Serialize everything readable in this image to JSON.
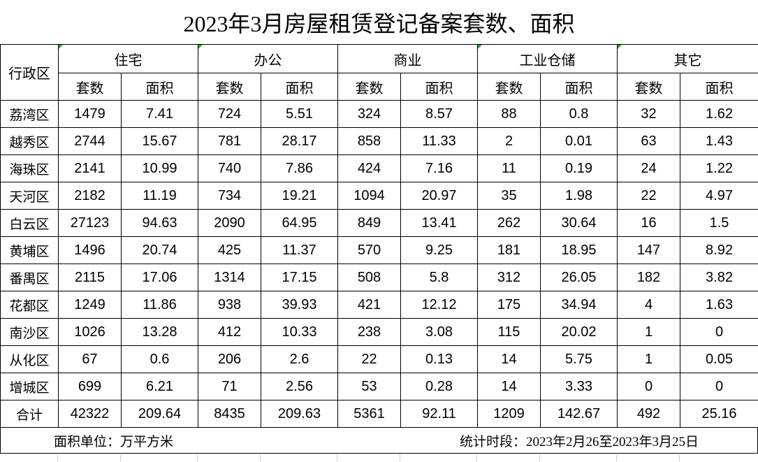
{
  "title": "2023年3月房屋租赁登记备案套数、面积",
  "chart_data": {
    "type": "table",
    "title": "2023年3月房屋租赁登记备案套数、面积",
    "corner_header": "行政区",
    "groups": [
      {
        "label": "住宅",
        "error_flag": true
      },
      {
        "label": "办公",
        "error_flag": true
      },
      {
        "label": "商业",
        "error_flag": false
      },
      {
        "label": "工业仓储",
        "error_flag": true
      },
      {
        "label": "其它",
        "error_flag": true
      }
    ],
    "sub_headers": [
      "套数",
      "面积"
    ],
    "columns": [
      "行政区",
      "住宅套数",
      "住宅面积",
      "办公套数",
      "办公面积",
      "商业套数",
      "商业面积",
      "工业仓储套数",
      "工业仓储面积",
      "其它套数",
      "其它面积"
    ],
    "rows": [
      {
        "district": "荔湾区",
        "values": [
          "1479",
          "7.41",
          "724",
          "5.51",
          "324",
          "8.57",
          "88",
          "0.8",
          "32",
          "1.62"
        ]
      },
      {
        "district": "越秀区",
        "values": [
          "2744",
          "15.67",
          "781",
          "28.17",
          "858",
          "11.33",
          "2",
          "0.01",
          "63",
          "1.43"
        ]
      },
      {
        "district": "海珠区",
        "values": [
          "2141",
          "10.99",
          "740",
          "7.86",
          "424",
          "7.16",
          "11",
          "0.19",
          "24",
          "1.22"
        ]
      },
      {
        "district": "天河区",
        "values": [
          "2182",
          "11.19",
          "734",
          "19.21",
          "1094",
          "20.97",
          "35",
          "1.98",
          "22",
          "4.97"
        ]
      },
      {
        "district": "白云区",
        "values": [
          "27123",
          "94.63",
          "2090",
          "64.95",
          "849",
          "13.41",
          "262",
          "30.64",
          "16",
          "1.5"
        ]
      },
      {
        "district": "黄埔区",
        "values": [
          "1496",
          "20.74",
          "425",
          "11.37",
          "570",
          "9.25",
          "181",
          "18.95",
          "147",
          "8.92"
        ]
      },
      {
        "district": "番禺区",
        "values": [
          "2115",
          "17.06",
          "1314",
          "17.15",
          "508",
          "5.8",
          "312",
          "26.05",
          "182",
          "3.82"
        ]
      },
      {
        "district": "花都区",
        "values": [
          "1249",
          "11.86",
          "938",
          "39.93",
          "421",
          "12.12",
          "175",
          "34.94",
          "4",
          "1.63"
        ]
      },
      {
        "district": "南沙区",
        "values": [
          "1026",
          "13.28",
          "412",
          "10.33",
          "238",
          "3.08",
          "115",
          "20.02",
          "1",
          "0"
        ]
      },
      {
        "district": "从化区",
        "values": [
          "67",
          "0.6",
          "206",
          "2.6",
          "22",
          "0.13",
          "14",
          "5.75",
          "1",
          "0.05"
        ]
      },
      {
        "district": "增城区",
        "values": [
          "699",
          "6.21",
          "71",
          "2.56",
          "53",
          "0.28",
          "14",
          "3.33",
          "0",
          "0"
        ]
      },
      {
        "district": "合计",
        "values": [
          "42322",
          "209.64",
          "8435",
          "209.63",
          "5361",
          "92.11",
          "1209",
          "142.67",
          "492",
          "25.16"
        ]
      }
    ]
  },
  "footer": {
    "area_unit_label": "面积单位：万平方米",
    "period_label": "统计时段：2023年2月26至2023年3月25日"
  },
  "colors": {
    "text": "#000000",
    "border": "#000000",
    "flag_green": "#2aa12a",
    "gridline_gray": "#c9c9c9",
    "background": "#ffffff"
  }
}
